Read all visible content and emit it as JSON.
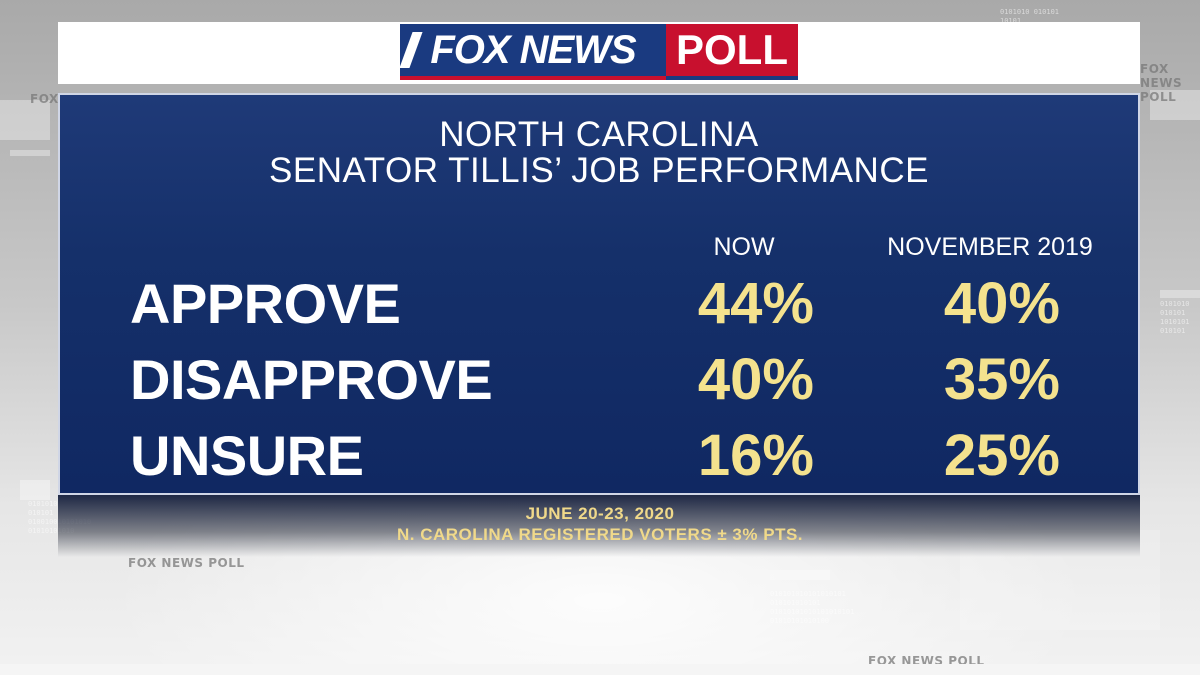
{
  "logo": {
    "brand": "FOX NEWS",
    "poll": "POLL"
  },
  "watermarks": [
    "FOX NEWS POLL",
    "FOX NEWS POLL",
    "FOX NEWS POLL",
    "FOX NEWS POLL"
  ],
  "colors": {
    "panel": "#15306a",
    "value": "#f4e28e",
    "brand_blue": "#1a3a80",
    "brand_red": "#c8102e"
  },
  "chart_data": {
    "type": "table",
    "title": "NORTH CAROLINA",
    "subtitle": "SENATOR TILLIS’ JOB PERFORMANCE",
    "columns": [
      "NOW",
      "NOVEMBER 2019"
    ],
    "rows": [
      {
        "label": "APPROVE",
        "values": [
          "44%",
          "40%"
        ]
      },
      {
        "label": "DISAPPROVE",
        "values": [
          "40%",
          "35%"
        ]
      },
      {
        "label": "UNSURE",
        "values": [
          "16%",
          "25%"
        ]
      }
    ],
    "footnote_date": "JUNE 20-23, 2020",
    "footnote_sample": "N. CAROLINA REGISTERED VOTERS ± 3% PTS."
  }
}
